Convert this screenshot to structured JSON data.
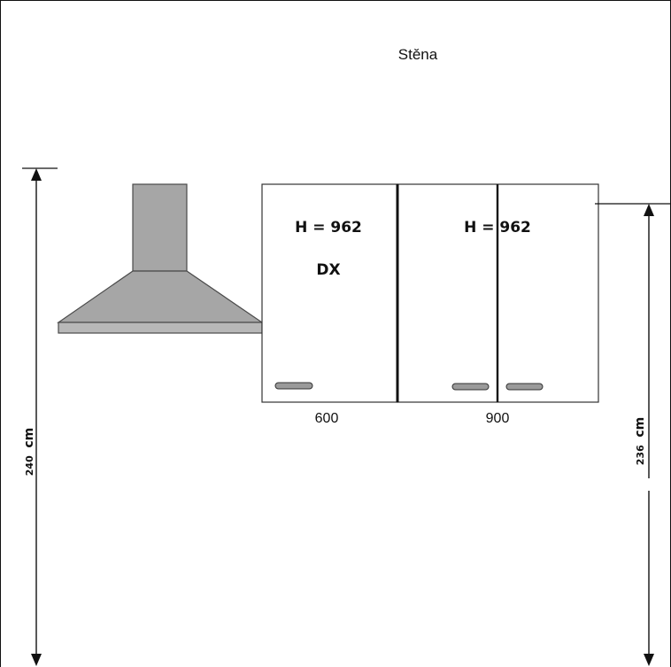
{
  "wall": {
    "label": "Stěna"
  },
  "cabinets": [
    {
      "id": "left",
      "height_label": "H = 962",
      "side_label": "DX",
      "width_label": "600",
      "doors": 1
    },
    {
      "id": "right",
      "height_label": "H = 962",
      "width_label": "900",
      "doors": 2
    }
  ],
  "dimensions": {
    "total_height": {
      "value": "240",
      "unit": "cm"
    },
    "cabinet_top_height": {
      "value": "236",
      "unit": "cm"
    }
  },
  "colors": {
    "line": "#111111",
    "hood_fill": "#a6a6a6",
    "hood_stroke": "#4a4a4a",
    "handle_fill": "#9a9a9a"
  }
}
